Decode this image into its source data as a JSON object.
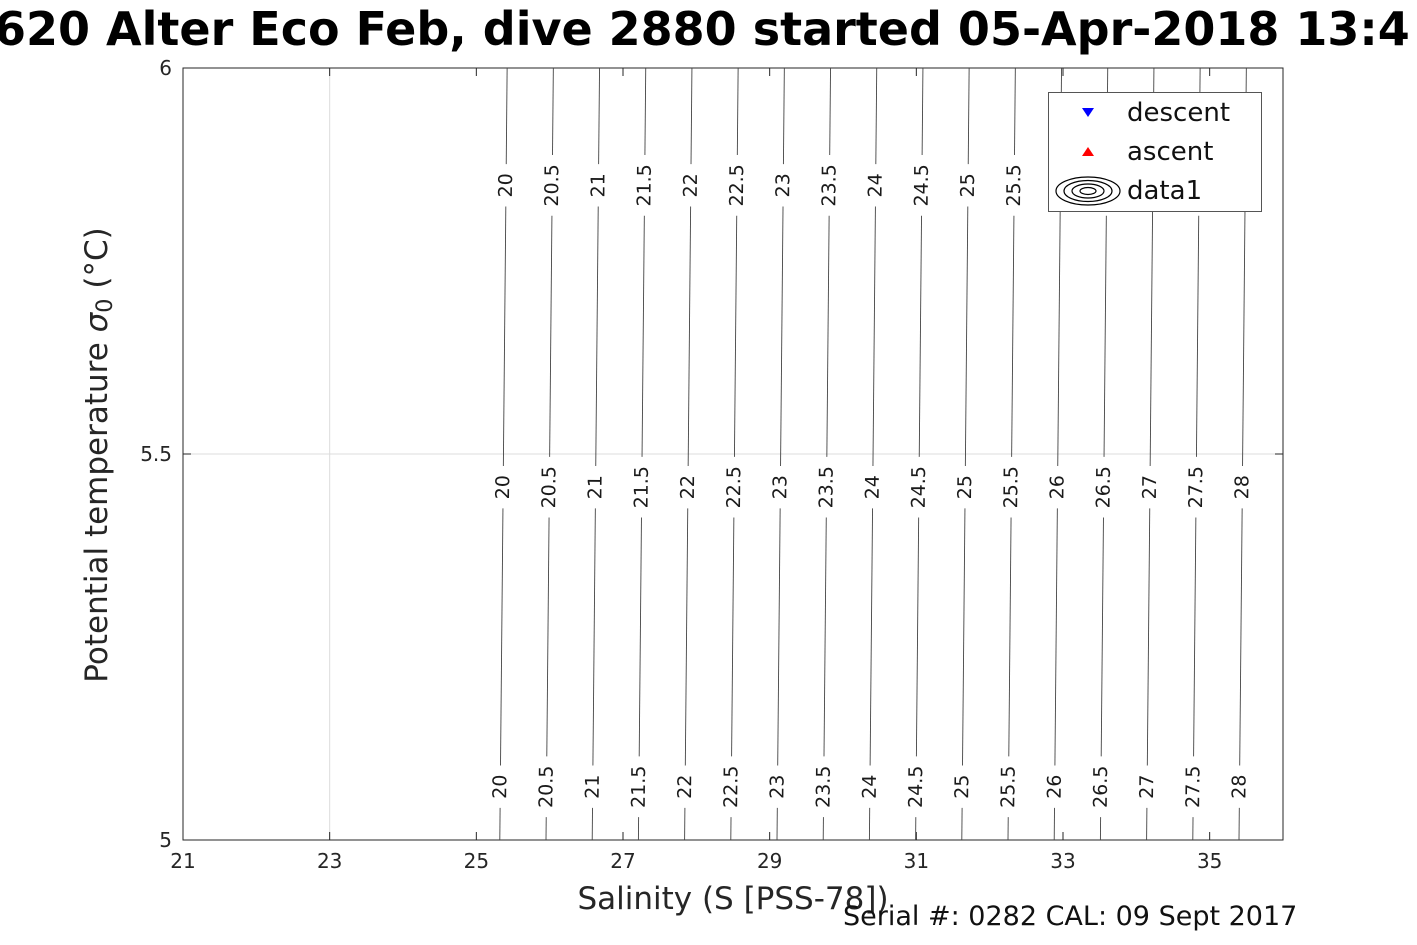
{
  "title": "620 Alter Eco Feb, dive 2880 started 05-Apr-2018 13:4",
  "xlabel": "Salinity (S [PSS-78])",
  "ylabel": {
    "prefix": "Potential temperature ",
    "symbol": "σ",
    "subscript": "0",
    "suffix": " (°C)"
  },
  "annotation": "Serial #: 0282  CAL: 09 Sept 2017",
  "legend": {
    "items": [
      {
        "label": "descent",
        "marker": "triangle-down",
        "color": "#0000ff"
      },
      {
        "label": "ascent",
        "marker": "triangle-up",
        "color": "#ff0000"
      },
      {
        "label": "data1",
        "marker": "contour-rings",
        "color": "#000000"
      }
    ]
  },
  "chart_data": {
    "type": "contour",
    "title": "620 Alter Eco Feb, dive 2880 started 05-Apr-2018 13:4",
    "xlabel": "Salinity (S [PSS-78])",
    "ylabel": "Potential temperature σ0 (°C)",
    "xlim": [
      21,
      36
    ],
    "ylim": [
      5,
      6
    ],
    "xticks": [
      21,
      23,
      25,
      27,
      29,
      31,
      33,
      35
    ],
    "yticks": [
      5,
      5.5,
      6
    ],
    "ytick_labels": [
      "5",
      "5.5",
      "6"
    ],
    "grid": {
      "x": [
        23
      ],
      "y": [
        5.5
      ]
    },
    "legend": [
      "descent",
      "ascent",
      "data1"
    ],
    "contour_levels": [
      20,
      20.5,
      21,
      21.5,
      22,
      22.5,
      23,
      23.5,
      24,
      24.5,
      25,
      25.5,
      26,
      26.5,
      27,
      27.5,
      28
    ],
    "salinity_at_T5": [
      25.32,
      25.95,
      26.58,
      27.21,
      27.84,
      28.47,
      29.1,
      29.73,
      30.36,
      30.99,
      31.62,
      32.25,
      32.88,
      33.51,
      34.14,
      34.77,
      35.4
    ],
    "salinity_at_T6": [
      25.42,
      26.05,
      26.68,
      27.31,
      27.94,
      28.57,
      29.2,
      29.83,
      30.46,
      31.09,
      31.72,
      32.35,
      32.98,
      33.61,
      34.24,
      34.87,
      35.5
    ],
    "label_row_temperatures": [
      5.848,
      5.457,
      5.069
    ],
    "line_color": "#444444",
    "axis_color": "#262626",
    "grid_color": "#dcdcdc",
    "label_color": "#1a1a1a"
  }
}
